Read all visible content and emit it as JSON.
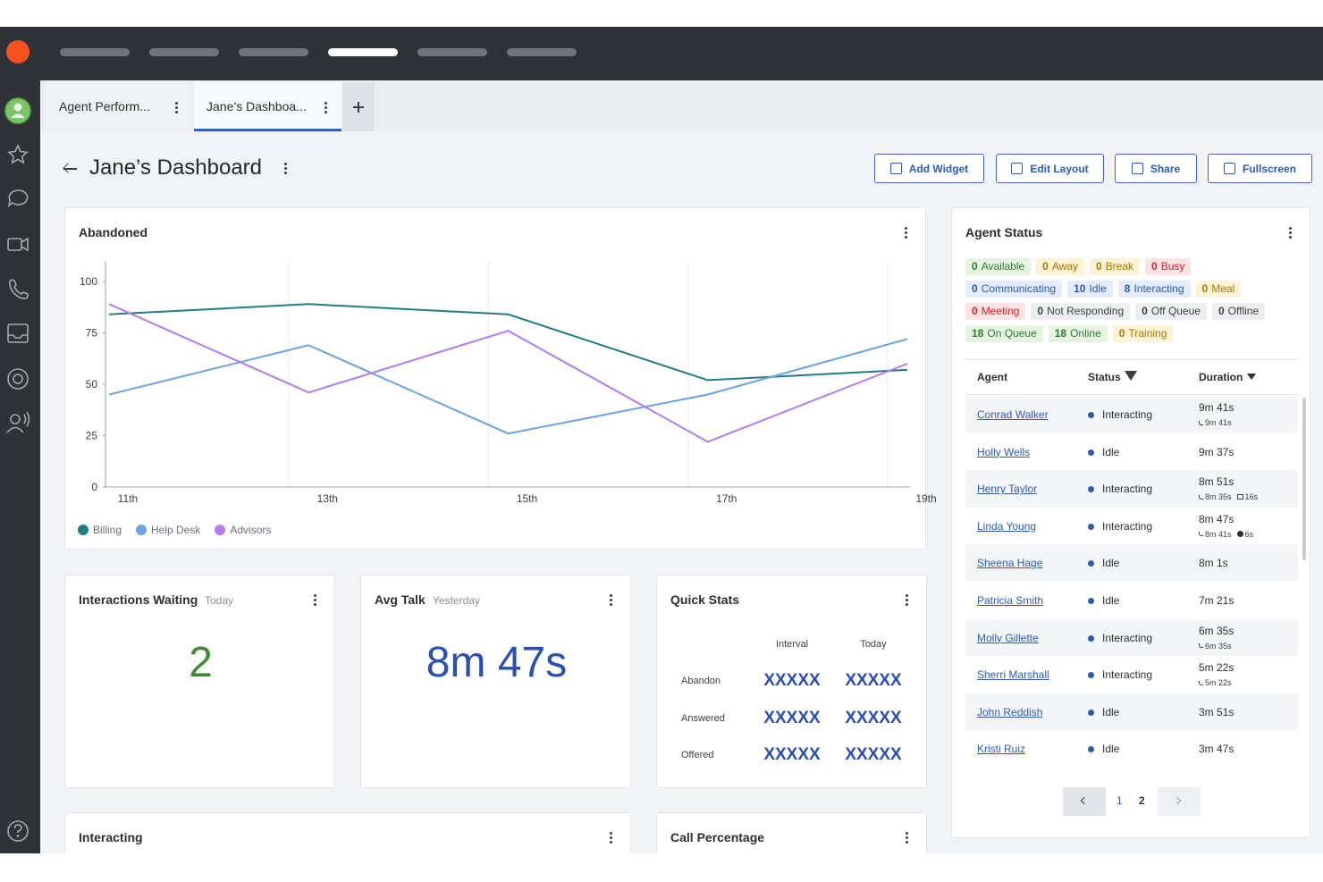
{
  "tabs": [
    "Agent Perform...",
    "Jane’s Dashboa..."
  ],
  "header": {
    "title": "Jane’s Dashboard",
    "buttons": [
      "Add Widget",
      "Edit Layout",
      "Share",
      "Fullscreen"
    ]
  },
  "chart_data": {
    "type": "line",
    "title": "Abandoned",
    "categories": [
      "11th",
      "13th",
      "15th",
      "17th",
      "19th"
    ],
    "series": [
      {
        "name": "Billing",
        "color": "#1f7d86",
        "values": [
          84,
          89,
          84,
          52,
          57
        ]
      },
      {
        "name": "Help Desk",
        "color": "#6aa3e2",
        "values": [
          45,
          69,
          26,
          45,
          72
        ]
      },
      {
        "name": "Advisors",
        "color": "#b67af0",
        "values": [
          89,
          46,
          76,
          22,
          60
        ]
      }
    ],
    "ylim": [
      0,
      110
    ],
    "yticks": [
      0,
      25,
      50,
      75,
      100
    ],
    "grid": true
  },
  "widgets": {
    "interactions_waiting": {
      "title": "Interactions Waiting",
      "period": "Today",
      "value": 2
    },
    "avg_talk": {
      "title": "Avg Talk",
      "period": "Yesterday",
      "value": "8m 47s"
    },
    "quick_stats": {
      "title": "Quick Stats",
      "columns": [
        "Interval",
        "Today"
      ],
      "rows": [
        {
          "label": "Abandon",
          "cells": [
            "XXXXX",
            "XXXXX"
          ]
        },
        {
          "label": "Answered",
          "cells": [
            "XXXXX",
            "XXXXX"
          ]
        },
        {
          "label": "Offered",
          "cells": [
            "XXXXX",
            "XXXXX"
          ]
        }
      ]
    },
    "interacting": {
      "title": "Interacting"
    },
    "call_percentage": {
      "title": "Call Percentage"
    }
  },
  "agent_status": {
    "title": "Agent Status",
    "chips": [
      {
        "count": 0,
        "label": "Available"
      },
      {
        "count": 0,
        "label": "Away"
      },
      {
        "count": 0,
        "label": "Break"
      },
      {
        "count": 0,
        "label": "Busy"
      },
      {
        "count": 0,
        "label": "Communicating"
      },
      {
        "count": 10,
        "label": "Idle"
      },
      {
        "count": 8,
        "label": "Interacting"
      },
      {
        "count": 0,
        "label": "Meal"
      },
      {
        "count": 0,
        "label": "Meeting"
      },
      {
        "count": 0,
        "label": "Not Responding"
      },
      {
        "count": 0,
        "label": "Off Queue"
      },
      {
        "count": 0,
        "label": "Offline"
      },
      {
        "count": 18,
        "label": "On Queue"
      },
      {
        "count": 18,
        "label": "Online"
      },
      {
        "count": 0,
        "label": "Training"
      }
    ],
    "columns": [
      "Agent",
      "Status",
      "Duration"
    ],
    "rows": [
      {
        "agent": "Conrad Walker",
        "status": "Interacting",
        "duration": "9m 41s",
        "details": {
          "talk": "9m 41s"
        }
      },
      {
        "agent": "Holly Wells",
        "status": "Idle",
        "duration": "9m 37s"
      },
      {
        "agent": "Henry Taylor",
        "status": "Interacting",
        "duration": "8m 51s",
        "details": {
          "talk": "8m 35s",
          "hold": "16s"
        }
      },
      {
        "agent": "Linda Young",
        "status": "Interacting",
        "duration": "8m 47s",
        "details": {
          "talk": "8m 41s",
          "acw": "6s"
        }
      },
      {
        "agent": "Sheena Hage",
        "status": "Idle",
        "duration": "8m 1s"
      },
      {
        "agent": "Patricia Smith",
        "status": "Idle",
        "duration": "7m 21s"
      },
      {
        "agent": "Molly Gillette",
        "status": "Interacting",
        "duration": "6m 35s",
        "details": {
          "talk": "6m 35s"
        }
      },
      {
        "agent": "Sherri Marshall",
        "status": "Interacting",
        "duration": "5m 22s",
        "details": {
          "talk": "5m 22s"
        }
      },
      {
        "agent": "John Reddish",
        "status": "Idle",
        "duration": "3m 51s"
      },
      {
        "agent": "Kristi Ruiz",
        "status": "Idle",
        "duration": "3m 47s"
      }
    ],
    "pages": [
      1,
      2
    ],
    "current_page": 2
  }
}
